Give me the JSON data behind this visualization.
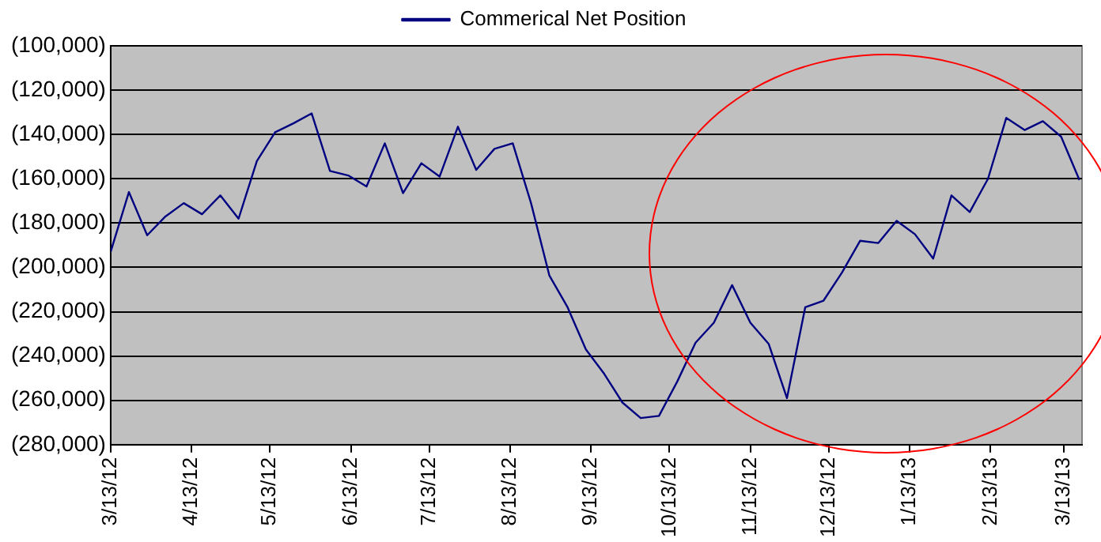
{
  "chart_data": {
    "type": "line",
    "x": [
      "2012-03-13",
      "2012-03-20",
      "2012-03-27",
      "2012-04-03",
      "2012-04-10",
      "2012-04-17",
      "2012-04-24",
      "2012-05-01",
      "2012-05-08",
      "2012-05-15",
      "2012-05-22",
      "2012-05-29",
      "2012-06-05",
      "2012-06-12",
      "2012-06-19",
      "2012-06-26",
      "2012-07-03",
      "2012-07-10",
      "2012-07-17",
      "2012-07-24",
      "2012-07-31",
      "2012-08-07",
      "2012-08-14",
      "2012-08-21",
      "2012-08-28",
      "2012-09-04",
      "2012-09-11",
      "2012-09-18",
      "2012-09-25",
      "2012-10-02",
      "2012-10-09",
      "2012-10-16",
      "2012-10-23",
      "2012-10-30",
      "2012-11-06",
      "2012-11-13",
      "2012-11-20",
      "2012-11-27",
      "2012-12-04",
      "2012-12-11",
      "2012-12-18",
      "2012-12-25",
      "2013-01-01",
      "2013-01-08",
      "2013-01-15",
      "2013-01-22",
      "2013-01-29",
      "2013-02-05",
      "2013-02-12",
      "2013-02-19",
      "2013-02-26",
      "2013-03-05",
      "2013-03-12",
      "2013-03-19"
    ],
    "series": [
      {
        "name": "Commerical Net Position",
        "color": "#000080",
        "values": [
          -193000,
          -166000,
          -185500,
          -177000,
          -171000,
          -176000,
          -167500,
          -178000,
          -152000,
          -139000,
          -135000,
          -130500,
          -156500,
          -158500,
          -163500,
          -144000,
          -166500,
          -153000,
          -159000,
          -136500,
          -156000,
          -146500,
          -144000,
          -171000,
          -203600,
          -218000,
          -237000,
          -248000,
          -261000,
          -268000,
          -267000,
          -251500,
          -234000,
          -225000,
          -208000,
          -225000,
          -234500,
          -259000,
          -218000,
          -215000,
          -202500,
          -188000,
          -189000,
          -179000,
          -185000,
          -196000,
          -167500,
          -175000,
          -160000,
          -132500,
          -138000,
          -134000,
          -141000,
          -160500
        ]
      }
    ],
    "xlim": [
      "2012-03-13",
      "2013-03-20"
    ],
    "xticks": [
      {
        "value": "2012-03-13",
        "label": "3/13/12"
      },
      {
        "value": "2012-04-13",
        "label": "4/13/12"
      },
      {
        "value": "2012-05-13",
        "label": "5/13/12"
      },
      {
        "value": "2012-06-13",
        "label": "6/13/12"
      },
      {
        "value": "2012-07-13",
        "label": "7/13/12"
      },
      {
        "value": "2012-08-13",
        "label": "8/13/12"
      },
      {
        "value": "2012-09-13",
        "label": "9/13/12"
      },
      {
        "value": "2012-10-13",
        "label": "10/13/12"
      },
      {
        "value": "2012-11-13",
        "label": "11/13/12"
      },
      {
        "value": "2012-12-13",
        "label": "12/13/12"
      },
      {
        "value": "2013-01-13",
        "label": "1/13/13"
      },
      {
        "value": "2013-02-13",
        "label": "2/13/13"
      },
      {
        "value": "2013-03-13",
        "label": "3/13/13"
      }
    ],
    "ylim": [
      -280000,
      -100000
    ],
    "yticks": [
      {
        "value": -280000,
        "label": "(280,000)"
      },
      {
        "value": -260000,
        "label": "(260,000)"
      },
      {
        "value": -240000,
        "label": "(240,000)"
      },
      {
        "value": -220000,
        "label": "(220,000)"
      },
      {
        "value": -200000,
        "label": "(200,000)"
      },
      {
        "value": -180000,
        "label": "(180,000)"
      },
      {
        "value": -160000,
        "label": "(160,000)"
      },
      {
        "value": -140000,
        "label": "(140,000)"
      },
      {
        "value": -120000,
        "label": "(120,000)"
      },
      {
        "value": -100000,
        "label": "(100,000)"
      }
    ],
    "grid": "y",
    "legend": "top",
    "marker": "none",
    "line_style": "solid"
  }
}
